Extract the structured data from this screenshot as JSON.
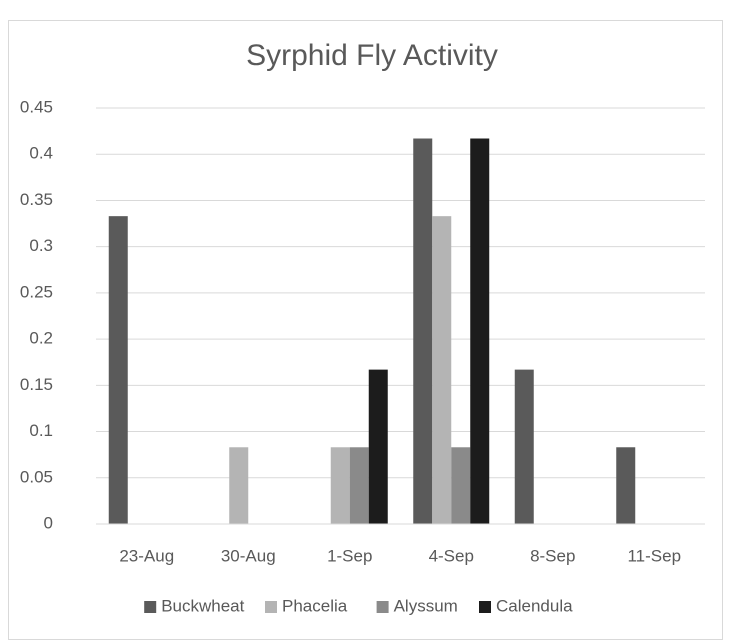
{
  "chart_data": {
    "type": "bar",
    "title": "Syrphid Fly Activity",
    "categories": [
      "23-Aug",
      "30-Aug",
      "1-Sep",
      "4-Sep",
      "8-Sep",
      "11-Sep"
    ],
    "series": [
      {
        "name": "Buckwheat",
        "color": "#5a5a5a",
        "values": [
          0.333,
          0,
          0,
          0.417,
          0.167,
          0.083
        ]
      },
      {
        "name": "Phacelia",
        "color": "#b4b4b4",
        "values": [
          0,
          0.083,
          0.083,
          0.333,
          0,
          0
        ]
      },
      {
        "name": "Alyssum",
        "color": "#8a8a8a",
        "values": [
          0,
          0,
          0.083,
          0.083,
          0,
          0
        ]
      },
      {
        "name": "Calendula",
        "color": "#1c1c1c",
        "values": [
          0,
          0,
          0.167,
          0.417,
          0,
          0
        ]
      }
    ],
    "ylim": [
      0,
      0.45
    ],
    "yticks": [
      0,
      0.05,
      0.1,
      0.15,
      0.2,
      0.25,
      0.3,
      0.35,
      0.4,
      0.45
    ],
    "grid": true,
    "legend": "bottom"
  }
}
